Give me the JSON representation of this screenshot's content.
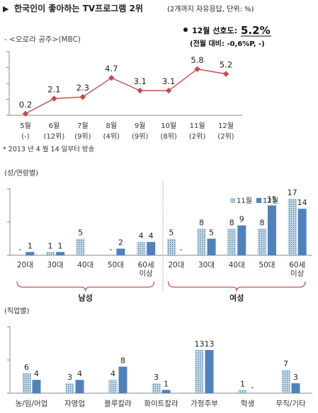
{
  "header": {
    "marker": "▶",
    "title": "한국인이 좋아하는 TV프로그램 2위",
    "note": "(2개까지 자유응답, 단위: %)"
  },
  "program": {
    "label": "- <오로라 공주>(MBC)",
    "current_label": "12월 선호도:",
    "current_value": "5.2%",
    "change": "(전월 대비: -0,6%P, -)"
  },
  "footnote": "* 2013 년 4 월 14 일부터 방송",
  "section_labels": {
    "gender_age": "(성/연령별)",
    "occupation": "(직업별)"
  },
  "colors": {
    "line": "#c0504d",
    "bar_12": "#4f81bd",
    "bar_11_fill": "#c5dcec",
    "bar_11_dot": "#4a7a9c",
    "axis": "#888888",
    "bracket": "#c0504d"
  },
  "chart_data": [
    {
      "type": "line",
      "categories": [
        "5월",
        "6월",
        "7월",
        "8월",
        "9월",
        "10월",
        "11월",
        "12월"
      ],
      "sublabels": [
        "(-)",
        "(12위)",
        "(9위)",
        "(4위)",
        "(9위)",
        "(8위)",
        "(2위)",
        "(2위)"
      ],
      "values": [
        0.2,
        2.1,
        2.3,
        4.7,
        3.1,
        3.1,
        5.8,
        5.2
      ],
      "ylim": [
        0,
        8
      ],
      "grid": false
    },
    {
      "type": "bar",
      "categories": [
        "20대",
        "30대",
        "40대",
        "50대",
        "60세 이상",
        "20대",
        "30대",
        "40대",
        "50대",
        "60세 이상"
      ],
      "groups": [
        {
          "label": "남성",
          "from": 0,
          "to": 4
        },
        {
          "label": "여성",
          "from": 5,
          "to": 9
        }
      ],
      "series": [
        {
          "name": "11월",
          "values": [
            null,
            1,
            5,
            null,
            4,
            5,
            8,
            8,
            8,
            17
          ]
        },
        {
          "name": "12월",
          "values": [
            1,
            1,
            null,
            2,
            4,
            null,
            5,
            9,
            15,
            14
          ]
        }
      ],
      "labels": [
        [
          "-",
          "1",
          "5",
          "-",
          "4",
          "5",
          "8",
          "8",
          "8",
          "17"
        ],
        [
          "1",
          "1",
          "",
          "2",
          "4",
          "-",
          "5",
          "9",
          "15",
          "14"
        ]
      ],
      "ylim": [
        0,
        20
      ],
      "legend": "top-right"
    },
    {
      "type": "bar",
      "categories": [
        "농/임/어업",
        "자영업",
        "블루칼라",
        "화이트칼라",
        "가정주부",
        "학생",
        "무직/기타"
      ],
      "series": [
        {
          "name": "11월",
          "values": [
            6,
            3,
            4,
            3,
            13,
            1,
            7
          ]
        },
        {
          "name": "12월",
          "values": [
            4,
            4,
            8,
            1,
            13,
            null,
            3
          ]
        }
      ],
      "labels": [
        [
          "6",
          "3",
          "4",
          "3",
          "13",
          "1",
          "7"
        ],
        [
          "4",
          "4",
          "8",
          "1",
          "13",
          "-",
          "3"
        ]
      ],
      "ylim": [
        0,
        20
      ]
    }
  ]
}
